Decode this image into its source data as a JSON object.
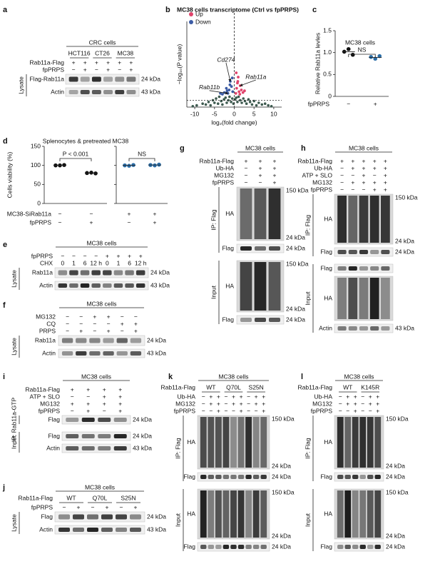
{
  "panels": [
    {
      "type": "blot",
      "label": "a",
      "title": "CRC cells",
      "groups": {
        "names": [
          "HCT116",
          "CT26",
          "MC38"
        ]
      },
      "conditions": [
        {
          "name": "Rab11a-Flag",
          "signs": [
            "+",
            "+",
            "+",
            "+",
            "+",
            "+"
          ]
        },
        {
          "name": "fpPRPS",
          "signs": [
            "−",
            "+",
            "−",
            "+",
            "−",
            "+"
          ]
        }
      ],
      "sections": [
        {
          "label": "Lysate",
          "blots": [
            {
              "name": "Flag-Rab11a",
              "markers": [
                "24 kDa"
              ]
            },
            {
              "name": "Actin",
              "markers": [
                "43 kDa"
              ]
            }
          ]
        }
      ]
    },
    {
      "type": "volcano",
      "label": "b",
      "title": "MC38 cells transcriptome (Ctrl vs fpPRPS)",
      "xlabel": "log₂(fold change)",
      "ylabel": "−log₁₀(P value)",
      "xlim": [
        -12,
        12
      ],
      "xticks": [
        -10,
        -5,
        0,
        5,
        10
      ],
      "ylim": [
        0,
        100
      ],
      "vline": 0,
      "hline": 8,
      "series": [
        {
          "name": "Up",
          "color": "#e0436b",
          "x": [
            0.4,
            0.6,
            0.8,
            1,
            1.2,
            1.5,
            1.8,
            2.2,
            0.5,
            0.9,
            1.4,
            2.6
          ],
          "y": [
            16,
            22,
            28,
            35,
            18,
            25,
            20,
            17,
            40,
            30,
            15,
            19
          ]
        },
        {
          "name": "Down",
          "color": "#3b5ba5",
          "x": [
            -0.4,
            -0.7,
            -1,
            -1.3,
            -1.6,
            -2,
            -2.5,
            -3,
            -0.5,
            -1.1,
            -1.8,
            -3.5
          ],
          "y": [
            18,
            24,
            30,
            20,
            16,
            22,
            17,
            15,
            34,
            26,
            19,
            16
          ]
        }
      ],
      "other": {
        "color": "#3d5a4f",
        "x": [
          -9.5,
          -8,
          -7.2,
          -6.5,
          -6,
          -5.4,
          -5,
          -4.6,
          -4.1,
          -3.8,
          -3.3,
          -3,
          -2.6,
          -2.2,
          -1.9,
          -1.5,
          -1.2,
          -0.8,
          -0.5,
          -0.2,
          0.2,
          0.5,
          0.8,
          1.1,
          1.5,
          1.9,
          2.3,
          2.7,
          3.1,
          3.6,
          4,
          4.5,
          5,
          5.6,
          6.2,
          7,
          7.8,
          8.6,
          9.4,
          -10.5
        ],
        "y": [
          2,
          4,
          3,
          6,
          2,
          8,
          5,
          10,
          4,
          12,
          7,
          3,
          9,
          11,
          5,
          8,
          12,
          6,
          10,
          4,
          9,
          11,
          6,
          12,
          8,
          5,
          10,
          7,
          4,
          9,
          6,
          3,
          7,
          2,
          5,
          3,
          4,
          2,
          1,
          1
        ]
      },
      "annotations": [
        {
          "text": "Cd274",
          "x": -1,
          "y": 30,
          "color": "#111"
        },
        {
          "text": "Rab11b",
          "x": -1.6,
          "y": 16,
          "color": "#111"
        },
        {
          "text": "Rab11a",
          "x": 1.5,
          "y": 25,
          "color": "#c0392b"
        }
      ]
    },
    {
      "type": "dot",
      "label": "c",
      "title": "MC38 cells",
      "ylabel": "Relative Rab11a levles",
      "ylim": [
        0,
        1.5
      ],
      "yticks": [
        0,
        0.5,
        {
          "value": 1,
          "label": "1.0"
        },
        1.5
      ],
      "groups": [
        {
          "values": [
            1.02,
            1.08,
            0.95
          ],
          "mean": 1.02,
          "color": "#111"
        },
        {
          "values": [
            0.9,
            0.86,
            0.92
          ],
          "mean": 0.89,
          "color": "#2b6ea8"
        }
      ],
      "brackets": [
        "NS"
      ],
      "conditions": [
        {
          "name": "fpPRPS",
          "signs": [
            "−",
            "+"
          ]
        }
      ]
    },
    {
      "type": "dot",
      "label": "d",
      "title": "Splenocytes & pretreated MC38",
      "ylabel": "Cells viability (%)",
      "ylim": [
        0,
        150
      ],
      "yticks": [
        0,
        50,
        100,
        150
      ],
      "groups": [
        {
          "values": [
            100,
            100,
            101
          ],
          "mean": 100,
          "color": "#111"
        },
        {
          "values": [
            80,
            81,
            79
          ],
          "mean": 80,
          "color": "#111"
        },
        {
          "values": [
            100,
            99,
            101
          ],
          "mean": 100,
          "color": "#2b6ea8"
        },
        {
          "values": [
            101,
            100,
            102
          ],
          "mean": 101,
          "color": "#2b6ea8"
        }
      ],
      "brackets": [
        "P < 0.001",
        "NS"
      ],
      "conditions": [
        {
          "name": "MC38-SiRab11a",
          "signs": [
            "−",
            "−",
            "+",
            "+"
          ]
        },
        {
          "name": "fpPRPS",
          "signs": [
            "−",
            "+",
            "−",
            "+"
          ]
        }
      ]
    },
    {
      "type": "blot",
      "label": "e",
      "title": "MC38 cells",
      "conditions": [
        {
          "name": "fpPRPS",
          "signs": [
            "−",
            "−",
            "−",
            "−",
            "+",
            "+",
            "+",
            "+"
          ]
        },
        {
          "name": "CHX",
          "signs": [
            "0",
            "1",
            "6",
            "12 h",
            "0",
            "1",
            "6",
            "12 h"
          ]
        }
      ],
      "sections": [
        {
          "label": "Lysate",
          "blots": [
            {
              "name": "Rab11a",
              "markers": [
                "24 kDa"
              ]
            },
            {
              "name": "Actin",
              "markers": [
                "43 kDa"
              ]
            }
          ]
        }
      ]
    },
    {
      "type": "blot",
      "label": "f",
      "title": "MC38 cells",
      "conditions": [
        {
          "name": "MG132",
          "signs": [
            "−",
            "−",
            "+",
            "+",
            "−",
            "−"
          ]
        },
        {
          "name": "CQ",
          "signs": [
            "−",
            "−",
            "−",
            "−",
            "+",
            "+"
          ]
        },
        {
          "name": "PRPS",
          "signs": [
            "−",
            "+",
            "−",
            "+",
            "−",
            "+"
          ]
        }
      ],
      "sections": [
        {
          "label": "Lysate",
          "blots": [
            {
              "name": "Rab11a",
              "markers": [
                "24 kDa"
              ]
            },
            {
              "name": "Actin",
              "markers": [
                "43 kDa"
              ]
            }
          ]
        }
      ]
    },
    {
      "type": "blot",
      "label": "g",
      "title": "MC38 cells",
      "conditions": [
        {
          "name": "Rab11a-Flag",
          "signs": [
            "+",
            "+",
            "+"
          ]
        },
        {
          "name": "Ub-HA",
          "signs": [
            "−",
            "+",
            "+"
          ]
        },
        {
          "name": "MG132",
          "signs": [
            "−",
            "+",
            "+"
          ]
        },
        {
          "name": "fpPRPS",
          "signs": [
            "−",
            "−",
            "+"
          ]
        }
      ],
      "sections": [
        {
          "label": "IP: Flag",
          "blots": [
            {
              "name": "HA",
              "markers": [
                "150 kDa",
                "24 kDa"
              ]
            },
            {
              "name": "Flag",
              "markers": [
                "24 kDa"
              ]
            }
          ]
        },
        {
          "label": "Input",
          "blots": [
            {
              "name": "HA",
              "markers": [
                "150 kDa",
                "24 kDa"
              ]
            },
            {
              "name": "Flag",
              "markers": [
                "24 kDa"
              ]
            }
          ]
        }
      ]
    },
    {
      "type": "blot",
      "label": "h",
      "title": "MC38 cells",
      "conditions": [
        {
          "name": "Rab11a-Flag",
          "signs": [
            "+",
            "+",
            "+",
            "+",
            "+"
          ]
        },
        {
          "name": "Ub-HA",
          "signs": [
            "−",
            "+",
            "+",
            "+",
            "+"
          ]
        },
        {
          "name": "ATP + SLO",
          "signs": [
            "−",
            "−",
            "+",
            "−",
            "+"
          ]
        },
        {
          "name": "MG132",
          "signs": [
            "−",
            "+",
            "+",
            "+",
            "+"
          ]
        },
        {
          "name": "fpPRPS",
          "signs": [
            "−",
            "−",
            "−",
            "+",
            "+"
          ]
        }
      ],
      "sections": [
        {
          "label": "IP: Flag",
          "blots": [
            {
              "name": "HA",
              "markers": [
                "150 kDa",
                "24 kDa"
              ]
            },
            {
              "name": "Flag",
              "markers": [
                "24 kDa"
              ]
            }
          ]
        },
        {
          "label": "Input",
          "blots": [
            {
              "name": "Flag",
              "markers": []
            },
            {
              "name": "HA",
              "markers": []
            },
            {
              "name": "Actin",
              "markers": [
                "43 kDa"
              ]
            }
          ]
        }
      ]
    },
    {
      "type": "blot",
      "label": "i",
      "title": "MC38 cells",
      "conditions": [
        {
          "name": "Rab11a-Flag",
          "signs": [
            "+",
            "+",
            "+",
            "+"
          ]
        },
        {
          "name": "ATP + SLO",
          "signs": [
            "−",
            "−",
            "+",
            "+"
          ]
        },
        {
          "name": "MG132",
          "signs": [
            "+",
            "+",
            "+",
            "+"
          ]
        },
        {
          "name": "fpPRPS",
          "signs": [
            "−",
            "+",
            "−",
            "+"
          ]
        }
      ],
      "sections": [
        {
          "label": "IP: Rab11a-GTP",
          "blots": [
            {
              "name": "Flag",
              "markers": [
                "24 kDa"
              ]
            }
          ]
        },
        {
          "label": "Input",
          "blots": [
            {
              "name": "Flag",
              "markers": [
                "24 kDa"
              ]
            },
            {
              "name": "Actin",
              "markers": [
                "43 kDa"
              ]
            }
          ]
        }
      ]
    },
    {
      "type": "blot",
      "label": "j",
      "title": "MC38 cells",
      "groups": {
        "label": "Rab11a-Flag",
        "names": [
          "WT",
          "Q70L",
          "S25N"
        ]
      },
      "conditions": [
        {
          "name": "fpPRPS",
          "signs": [
            "−",
            "+",
            "−",
            "+",
            "−",
            "+"
          ]
        }
      ],
      "sections": [
        {
          "label": "Lysate",
          "blots": [
            {
              "name": "Flag",
              "markers": [
                "24 kDa"
              ]
            },
            {
              "name": "Actin",
              "markers": [
                "43 kDa"
              ]
            }
          ]
        }
      ]
    },
    {
      "type": "blot",
      "label": "k",
      "title": "MC38 cells",
      "groups": {
        "label": "Rab11a-Flag",
        "names": [
          "WT",
          "Q70L",
          "S25N"
        ]
      },
      "conditions": [
        {
          "name": "Ub-HA",
          "signs": [
            "−",
            "+",
            "+",
            "−",
            "+",
            "+",
            "−",
            "+",
            "+"
          ]
        },
        {
          "name": "MG132",
          "signs": [
            "−",
            "+",
            "+",
            "−",
            "+",
            "+",
            "−",
            "+",
            "+"
          ]
        },
        {
          "name": "fpPRPS",
          "signs": [
            "−",
            "−",
            "+",
            "−",
            "−",
            "+",
            "−",
            "−",
            "+"
          ]
        }
      ],
      "sections": [
        {
          "label": "IP: Flag",
          "blots": [
            {
              "name": "HA",
              "markers": [
                "150 kDa",
                "24 kDa"
              ]
            },
            {
              "name": "Flag",
              "markers": [
                "24 kDa"
              ]
            }
          ]
        },
        {
          "label": "Input",
          "blots": [
            {
              "name": "HA",
              "markers": [
                "150 kDa",
                "24 kDa"
              ]
            },
            {
              "name": "Flag",
              "markers": [
                "24 kDa"
              ]
            }
          ]
        }
      ]
    },
    {
      "type": "blot",
      "label": "l",
      "title": "MC38 cells",
      "groups": {
        "label": "Rab11a-Flag",
        "names": [
          "WT",
          "K145R"
        ]
      },
      "conditions": [
        {
          "name": "Ub-HA",
          "signs": [
            "−",
            "+",
            "+",
            "−",
            "+",
            "+"
          ]
        },
        {
          "name": "MG132",
          "signs": [
            "−",
            "+",
            "+",
            "−",
            "+",
            "+"
          ]
        },
        {
          "name": "fpPRPS",
          "signs": [
            "−",
            "−",
            "+",
            "−",
            "−",
            "+"
          ]
        }
      ],
      "sections": [
        {
          "label": "IP: Flag",
          "blots": [
            {
              "name": "HA",
              "markers": [
                "150 kDa",
                "24 kDa"
              ]
            },
            {
              "name": "Flag",
              "markers": [
                "24 kDa"
              ]
            }
          ]
        },
        {
          "label": "Input",
          "blots": [
            {
              "name": "HA",
              "markers": [
                "150 kDa",
                "24 kDa"
              ]
            },
            {
              "name": "Flag",
              "markers": [
                "24 kDa"
              ]
            }
          ]
        }
      ]
    }
  ]
}
